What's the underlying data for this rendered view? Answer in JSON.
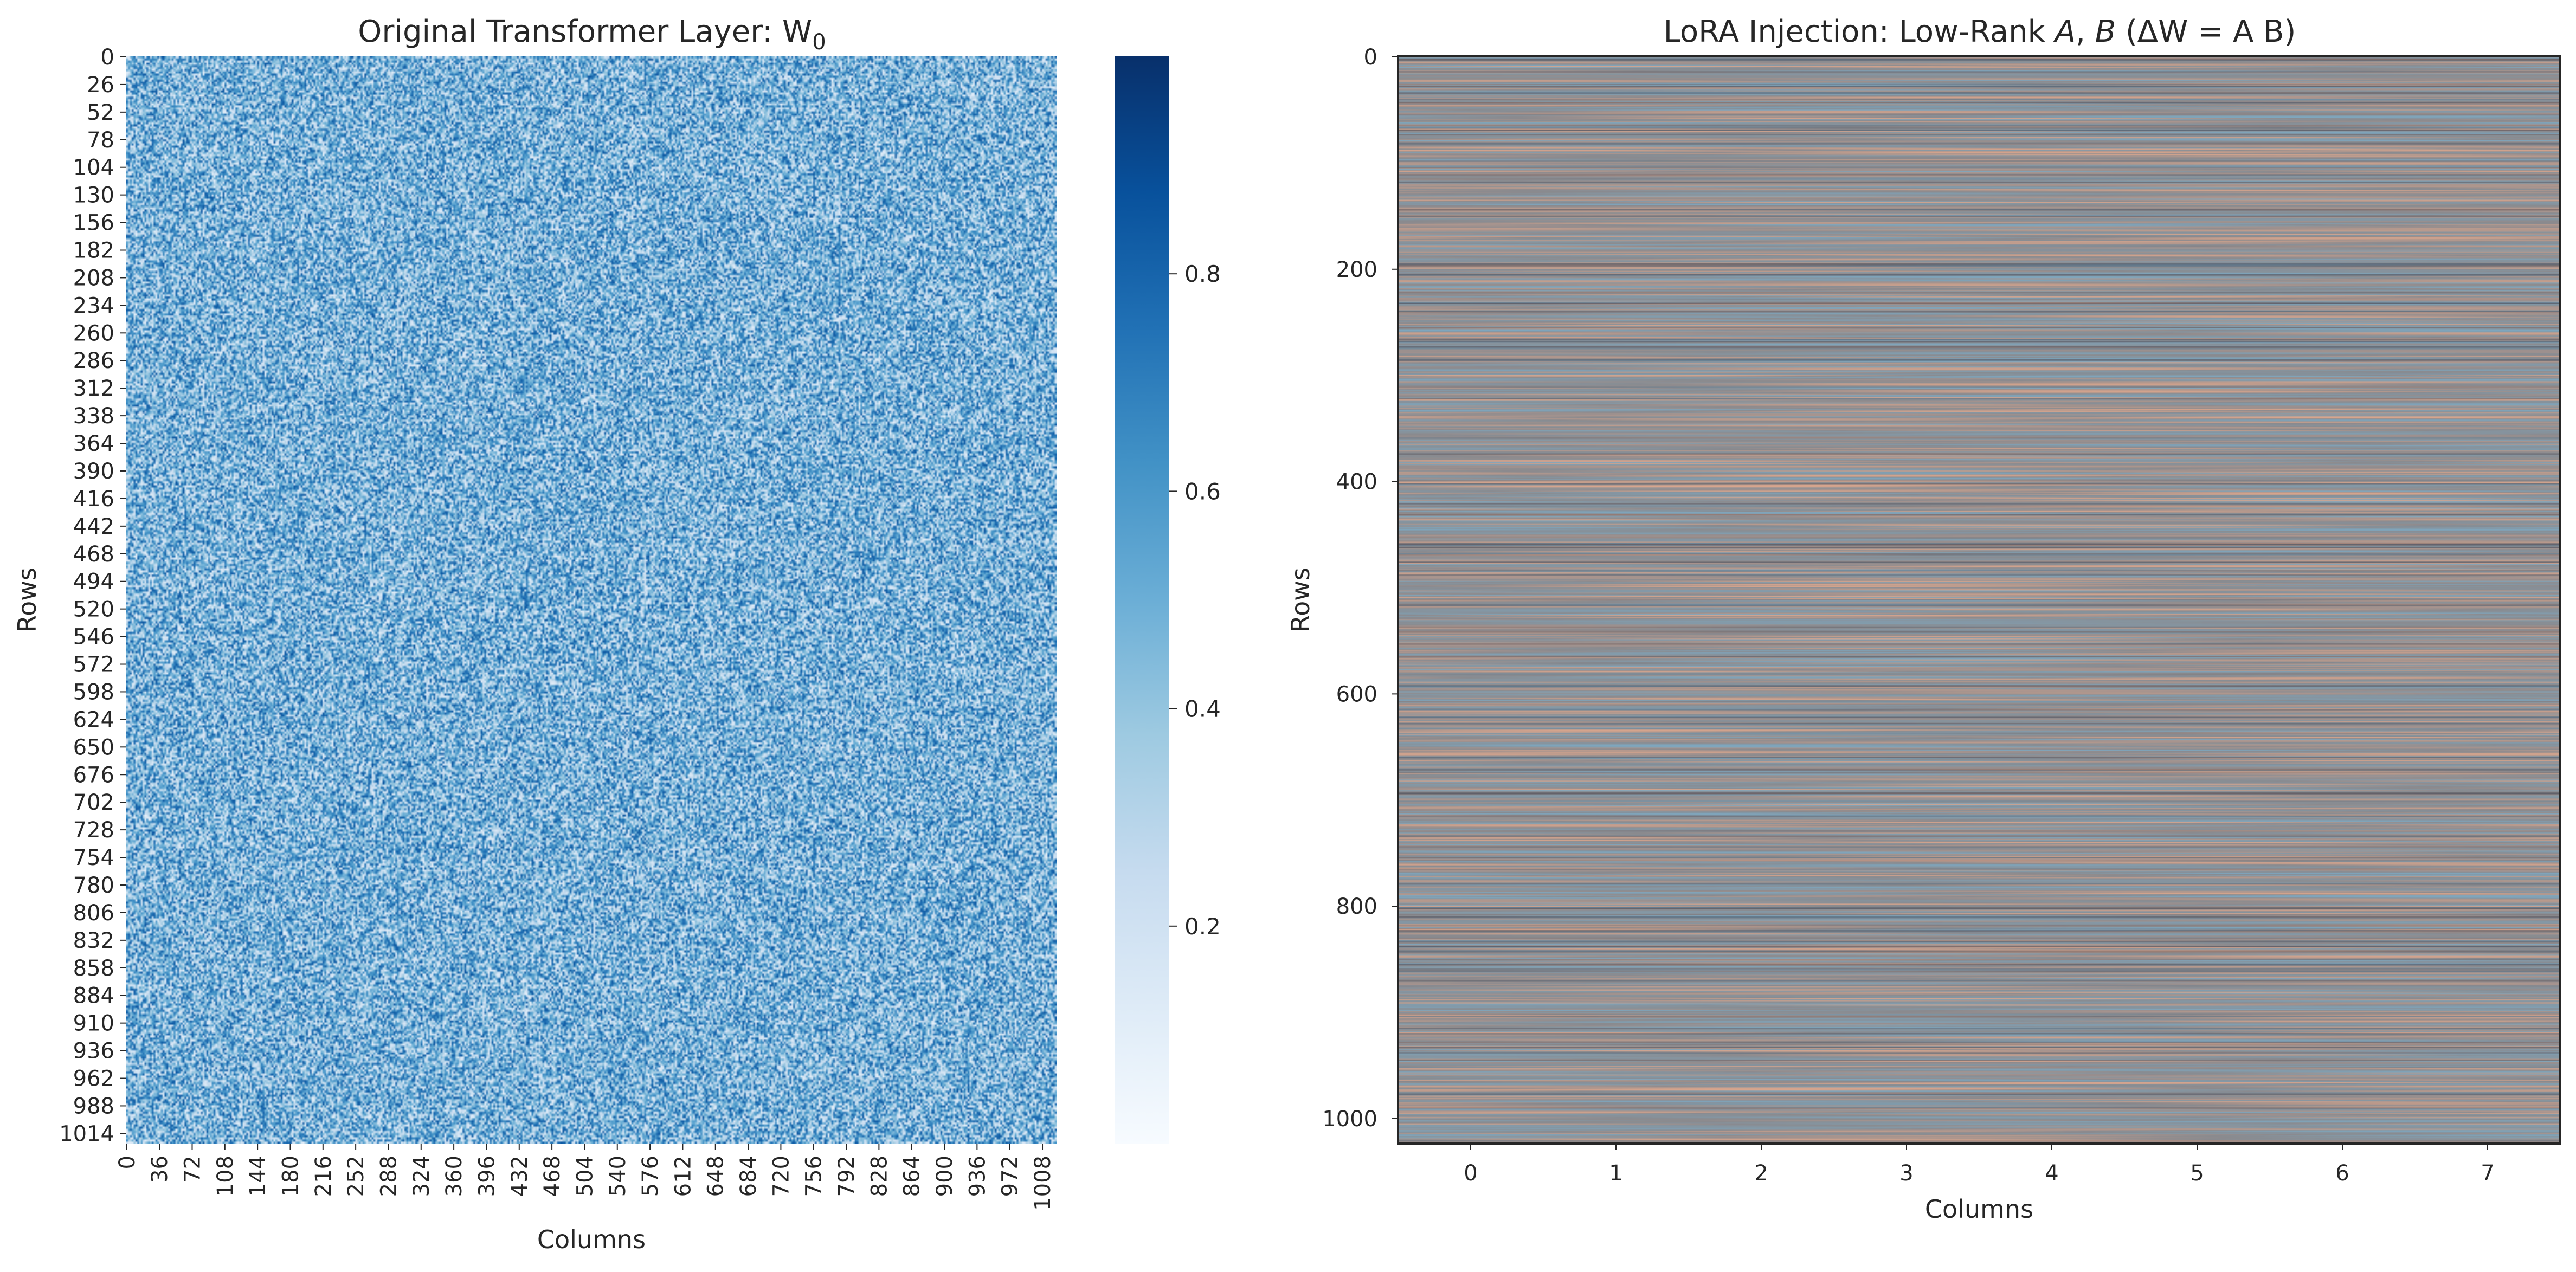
{
  "chart_data": [
    {
      "type": "heatmap",
      "title": "Original Transformer Layer: W",
      "title_subscript": "0",
      "xlabel": "Columns",
      "ylabel": "Rows",
      "rows": 1024,
      "columns": 1024,
      "colormap": "Blues",
      "value_range": [
        0.0,
        1.0
      ],
      "x_tick_labels": [
        "0",
        "36",
        "72",
        "108",
        "144",
        "180",
        "216",
        "252",
        "288",
        "324",
        "360",
        "396",
        "432",
        "468",
        "504",
        "540",
        "576",
        "612",
        "648",
        "684",
        "720",
        "756",
        "792",
        "828",
        "864",
        "900",
        "936",
        "972",
        "1008"
      ],
      "y_tick_labels": [
        "0",
        "26",
        "52",
        "78",
        "104",
        "130",
        "156",
        "182",
        "208",
        "234",
        "260",
        "286",
        "312",
        "338",
        "364",
        "390",
        "416",
        "442",
        "468",
        "494",
        "520",
        "546",
        "572",
        "598",
        "624",
        "650",
        "676",
        "702",
        "728",
        "754",
        "780",
        "806",
        "832",
        "858",
        "884",
        "910",
        "936",
        "962",
        "988",
        "1014"
      ],
      "colorbar_ticks": [
        "0.2",
        "0.4",
        "0.6",
        "0.8"
      ],
      "colorbar_tick_values": [
        0.2,
        0.4,
        0.6,
        0.8
      ],
      "colors": {
        "low": "#f7fbff",
        "mid": "#4292c6",
        "high": "#08306b"
      }
    },
    {
      "type": "heatmap",
      "title_prefix": "LoRA Injection: Low-Rank ",
      "title_A": "A",
      "title_sep": ", ",
      "title_B": "B",
      "title_suffix": "  (ΔW = A B)",
      "xlabel": "Columns",
      "ylabel": "Rows",
      "rows": 1024,
      "columns": 8,
      "colormap": "diverging (blue-grey-salmon)",
      "x_tick_labels": [
        "0",
        "1",
        "2",
        "3",
        "4",
        "5",
        "6",
        "7"
      ],
      "y_tick_labels": [
        "0",
        "200",
        "400",
        "600",
        "800",
        "1000"
      ],
      "y_tick_values": [
        0,
        200,
        400,
        600,
        800,
        1000
      ],
      "colors": {
        "cool": "#7fa6bd",
        "neutral": "#8a8a8e",
        "warm": "#d7a58d",
        "dark": "#3b3c4a"
      }
    }
  ]
}
